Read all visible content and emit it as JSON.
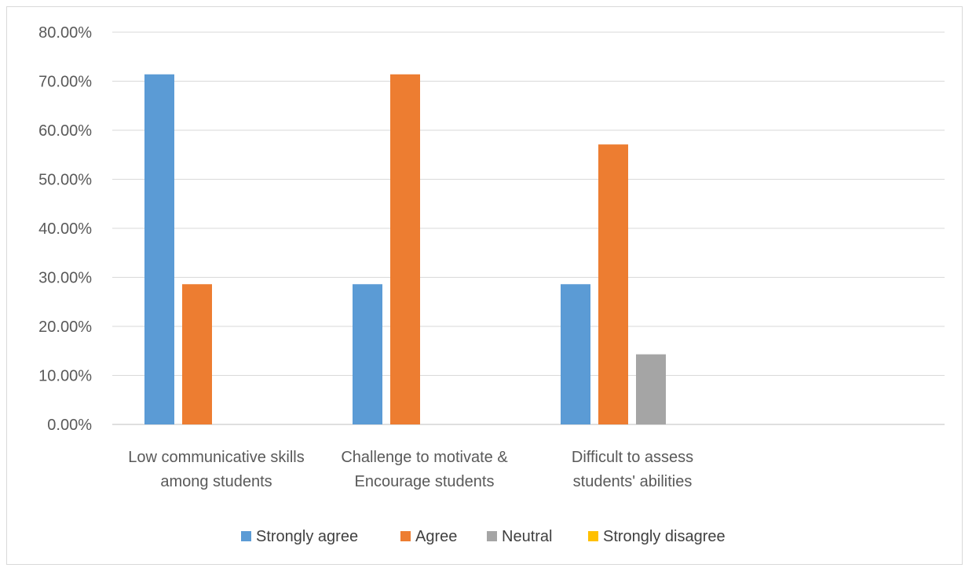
{
  "chart_data": {
    "type": "bar",
    "title": "",
    "xlabel": "",
    "ylabel": "",
    "ylim": [
      0,
      0.8
    ],
    "y_ticks": [
      "0.00%",
      "10.00%",
      "20.00%",
      "30.00%",
      "40.00%",
      "50.00%",
      "60.00%",
      "70.00%",
      "80.00%"
    ],
    "grid": true,
    "legend_position": "bottom",
    "categories": [
      [
        "Low communicative skills",
        "among students"
      ],
      [
        "Challenge to motivate &",
        "Encourage students"
      ],
      [
        "Difficult to assess",
        "students' abilities"
      ],
      [
        "",
        ""
      ]
    ],
    "series": [
      {
        "name": "Strongly agree",
        "color": "#5b9bd5",
        "values": [
          0.714,
          0.286,
          0.286,
          0
        ]
      },
      {
        "name": "Agree",
        "color": "#ed7d31",
        "values": [
          0.286,
          0.714,
          0.571,
          0
        ]
      },
      {
        "name": "Neutral",
        "color": "#a5a5a5",
        "values": [
          0,
          0,
          0.143,
          0
        ]
      },
      {
        "name": "Strongly disagree",
        "color": "#ffc000",
        "values": [
          0,
          0,
          0,
          0
        ]
      }
    ]
  }
}
